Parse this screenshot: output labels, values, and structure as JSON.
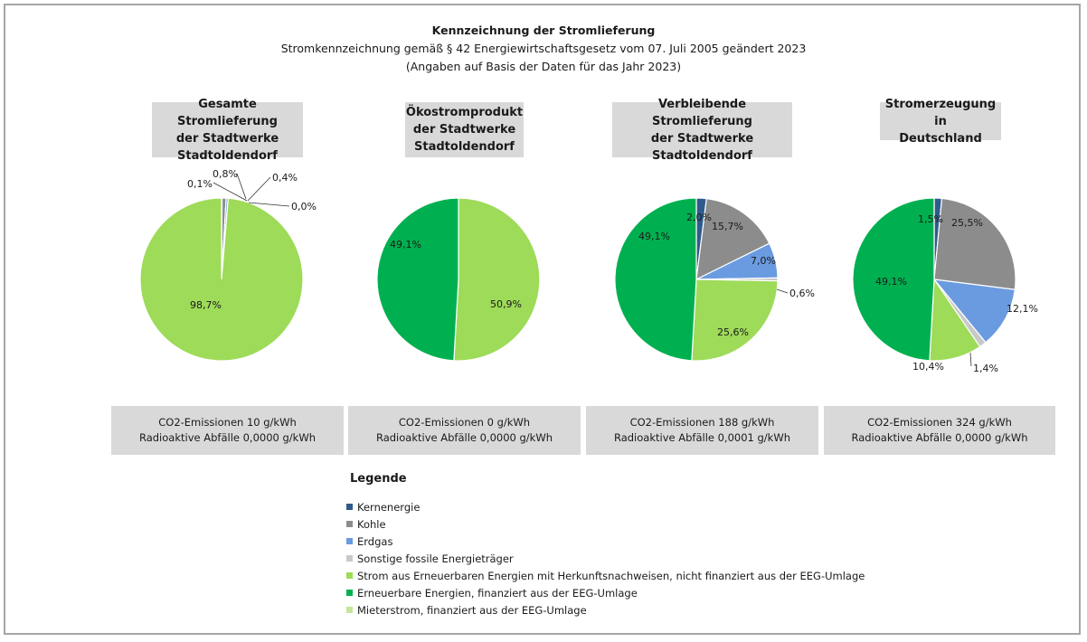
{
  "title": "Kennzeichnung der Stromlieferung",
  "subtitle_1": "Stromkennzeichnung gemäß § 42 Energiewirtschaftsgesetz vom 07. Juli 2005 geändert 2023",
  "subtitle_2": "(Angaben auf Basis der Daten für das Jahr 2023)",
  "colors": {
    "kernenergie": "#2e5b8c",
    "kohle": "#8c8c8c",
    "erdgas": "#6a9be0",
    "sonstige": "#c8c8c8",
    "strom_hkn": "#9ddb58",
    "eeg": "#00b050",
    "mieterstrom": "#c4e59a"
  },
  "legend": {
    "title": "Legende",
    "items": [
      {
        "key": "kernenergie",
        "label": "Kernenergie"
      },
      {
        "key": "kohle",
        "label": "Kohle"
      },
      {
        "key": "erdgas",
        "label": "Erdgas"
      },
      {
        "key": "sonstige",
        "label": "Sonstige fossile Energieträger"
      },
      {
        "key": "strom_hkn",
        "label": "Strom aus Erneuerbaren Energien mit Herkunftsnachweisen, nicht finanziert aus der EEG-Umlage"
      },
      {
        "key": "eeg",
        "label": "Erneuerbare Energien, finanziert aus der EEG-Umlage"
      },
      {
        "key": "mieterstrom",
        "label": "Mieterstrom, finanziert aus der EEG-Umlage"
      }
    ]
  },
  "chart_data": [
    {
      "type": "pie",
      "title": "Gesamte Stromlieferung\nder Stadtwerke\nStadtoldendorf",
      "emissions": "CO2-Emissionen 10 g/kWh",
      "waste": "Radioaktive Abfälle 0,0000 g/kWh",
      "slices": [
        {
          "key": "kernenergie",
          "value": 0.1,
          "label": "0,1%"
        },
        {
          "key": "kohle",
          "value": 0.8,
          "label": "0,8%"
        },
        {
          "key": "erdgas",
          "value": 0.4,
          "label": "0,4%"
        },
        {
          "key": "sonstige",
          "value": 0.0,
          "label": "0,0%"
        },
        {
          "key": "strom_hkn",
          "value": 98.7,
          "label": "98,7%"
        }
      ]
    },
    {
      "type": "pie",
      "title": "Ökostromprodukt\nder Stadtwerke\nStadtoldendorf",
      "emissions": "CO2-Emissionen 0 g/kWh",
      "waste": "Radioaktive Abfälle 0,0000 g/kWh",
      "slices": [
        {
          "key": "strom_hkn",
          "value": 50.9,
          "label": "50,9%"
        },
        {
          "key": "eeg",
          "value": 49.1,
          "label": "49,1%"
        }
      ]
    },
    {
      "type": "pie",
      "title": "Verbleibende Stromlieferung\nder Stadtwerke\nStadtoldendorf",
      "emissions": "CO2-Emissionen 188 g/kWh",
      "waste": "Radioaktive Abfälle 0,0001 g/kWh",
      "slices": [
        {
          "key": "kernenergie",
          "value": 2.0,
          "label": "2,0%"
        },
        {
          "key": "kohle",
          "value": 15.7,
          "label": "15,7%"
        },
        {
          "key": "erdgas",
          "value": 7.0,
          "label": "7,0%"
        },
        {
          "key": "sonstige",
          "value": 0.6,
          "label": "0,6%"
        },
        {
          "key": "strom_hkn",
          "value": 25.6,
          "label": "25,6%"
        },
        {
          "key": "eeg",
          "value": 49.1,
          "label": "49,1%"
        }
      ]
    },
    {
      "type": "pie",
      "title": "Stromerzeugung in\nDeutschland",
      "emissions": "CO2-Emissionen 324 g/kWh",
      "waste": "Radioaktive Abfälle 0,0000 g/kWh",
      "slices": [
        {
          "key": "kernenergie",
          "value": 1.5,
          "label": "1,5%"
        },
        {
          "key": "kohle",
          "value": 25.5,
          "label": "25,5%"
        },
        {
          "key": "erdgas",
          "value": 12.1,
          "label": "12,1%"
        },
        {
          "key": "sonstige",
          "value": 1.4,
          "label": "1,4%"
        },
        {
          "key": "strom_hkn",
          "value": 10.4,
          "label": "10,4%"
        },
        {
          "key": "eeg",
          "value": 49.1,
          "label": "49,1%"
        }
      ]
    }
  ]
}
